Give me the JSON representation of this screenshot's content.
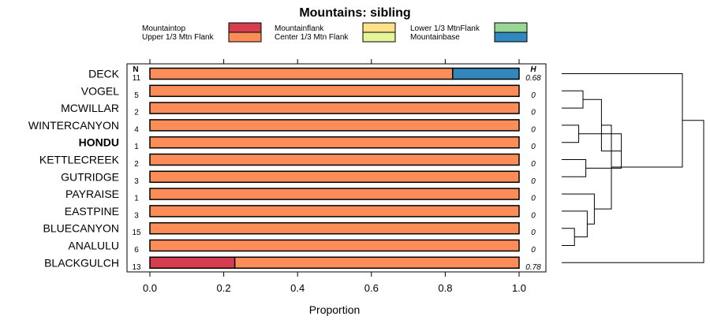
{
  "chart_data": {
    "type": "bar",
    "orientation": "horizontal",
    "stacked": true,
    "title": "Mountains: sibling",
    "xlabel": "Proportion",
    "xlim": [
      0,
      1
    ],
    "xticks": [
      "0.0",
      "0.2",
      "0.4",
      "0.6",
      "0.8",
      "1.0"
    ],
    "n_header": "N",
    "h_header": "H",
    "legend_position": "top",
    "legend": [
      {
        "label": "Mountaintop",
        "color": "#d53e4f"
      },
      {
        "label": "Upper 1/3 Mtn Flank",
        "color": "#fc8d59"
      },
      {
        "label": "Mountainflank",
        "color": "#fee08b"
      },
      {
        "label": "Center 1/3 Mtn Flank",
        "color": "#e6f598"
      },
      {
        "label": "Lower 1/3 MtnFlank",
        "color": "#99d594"
      },
      {
        "label": "Mountainbase",
        "color": "#3288bd"
      }
    ],
    "rows": [
      {
        "label": "DECK",
        "n": "11",
        "h": "0.68",
        "bold": false,
        "segments": [
          {
            "category": "Upper 1/3 Mtn Flank",
            "value": 0.82
          },
          {
            "category": "Mountainbase",
            "value": 0.18
          }
        ]
      },
      {
        "label": "VOGEL",
        "n": "5",
        "h": "0",
        "bold": false,
        "segments": [
          {
            "category": "Upper 1/3 Mtn Flank",
            "value": 1.0
          }
        ]
      },
      {
        "label": "MCWILLAR",
        "n": "2",
        "h": "0",
        "bold": false,
        "segments": [
          {
            "category": "Upper 1/3 Mtn Flank",
            "value": 1.0
          }
        ]
      },
      {
        "label": "WINTERCANYON",
        "n": "4",
        "h": "0",
        "bold": false,
        "segments": [
          {
            "category": "Upper 1/3 Mtn Flank",
            "value": 1.0
          }
        ]
      },
      {
        "label": "HONDU",
        "n": "1",
        "h": "0",
        "bold": true,
        "segments": [
          {
            "category": "Upper 1/3 Mtn Flank",
            "value": 1.0
          }
        ]
      },
      {
        "label": "KETTLECREEK",
        "n": "2",
        "h": "0",
        "bold": false,
        "segments": [
          {
            "category": "Upper 1/3 Mtn Flank",
            "value": 1.0
          }
        ]
      },
      {
        "label": "GUTRIDGE",
        "n": "3",
        "h": "0",
        "bold": false,
        "segments": [
          {
            "category": "Upper 1/3 Mtn Flank",
            "value": 1.0
          }
        ]
      },
      {
        "label": "PAYRAISE",
        "n": "1",
        "h": "0",
        "bold": false,
        "segments": [
          {
            "category": "Upper 1/3 Mtn Flank",
            "value": 1.0
          }
        ]
      },
      {
        "label": "EASTPINE",
        "n": "3",
        "h": "0",
        "bold": false,
        "segments": [
          {
            "category": "Upper 1/3 Mtn Flank",
            "value": 1.0
          }
        ]
      },
      {
        "label": "BLUECANYON",
        "n": "15",
        "h": "0",
        "bold": false,
        "segments": [
          {
            "category": "Upper 1/3 Mtn Flank",
            "value": 1.0
          }
        ]
      },
      {
        "label": "ANALULU",
        "n": "6",
        "h": "0",
        "bold": false,
        "segments": [
          {
            "category": "Upper 1/3 Mtn Flank",
            "value": 1.0
          }
        ]
      },
      {
        "label": "BLACKGULCH",
        "n": "13",
        "h": "0.78",
        "bold": false,
        "segments": [
          {
            "category": "Mountaintop",
            "value": 0.23
          },
          {
            "category": "Upper 1/3 Mtn Flank",
            "value": 0.77
          }
        ]
      }
    ],
    "dendrogram": {
      "leaf_order": [
        "DECK",
        "VOGEL",
        "MCWILLAR",
        "WINTERCANYON",
        "HONDU",
        "KETTLECREEK",
        "GUTRIDGE",
        "PAYRAISE",
        "EASTPINE",
        "BLUECANYON",
        "ANALULU",
        "BLACKGULCH"
      ],
      "merges": [
        {
          "left": "VOGEL",
          "right": "MCWILLAR",
          "height": 0.15
        },
        {
          "left": "WINTERCANYON",
          "right": "HONDU",
          "height": 0.12
        },
        {
          "left": "KETTLECREEK",
          "right": "GUTRIDGE",
          "height": 0.17
        },
        {
          "left": "BLUECANYON",
          "right": "ANALULU",
          "height": 0.09
        },
        {
          "left": "EASTPINE",
          "right": "BLUECANYON+ANALULU",
          "height": 0.18
        },
        {
          "left": "WINTERCANYON+HONDU",
          "right": "KETTLECREEK+GUTRIDGE",
          "height": 0.42
        },
        {
          "left": "PAYRAISE",
          "right": "EASTPINE+BLUECANYON+ANALULU",
          "height": 0.23
        },
        {
          "left": "VOGEL+MCWILLAR",
          "right": "WINTERCANYON+HONDU+KETTLECREEK+GUTRIDGE",
          "height": 0.28
        },
        {
          "left": "VOGEL+MCWILLAR+WINTERCANYON+HONDU+KETTLECREEK+GUTRIDGE",
          "right": "PAYRAISE+EASTPINE+BLUECANYON+ANALULU",
          "height": 0.35
        },
        {
          "left": "DECK",
          "right": "VOGEL+MCWILLAR+WINTERCANYON+HONDU+KETTLECREEK+GUTRIDGE+PAYRAISE+EASTPINE+BLUECANYON+ANALULU",
          "height": 0.85
        },
        {
          "left": "DECK+…",
          "right": "BLACKGULCH",
          "height": 1.0
        }
      ]
    }
  }
}
